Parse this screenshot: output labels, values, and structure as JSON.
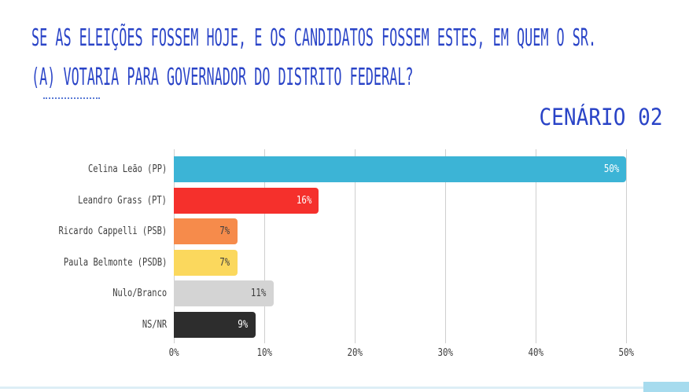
{
  "page": {
    "question_line1": "SE AS ELEIÇÕES FOSSEM HOJE, E OS CANDIDATOS FOSSEM ESTES, EM QUEM O SR.",
    "question_line2": "(A) VOTARIA PARA GOVERNADOR DO DISTRITO FEDERAL?",
    "scenario_label": "CENÁRIO 02",
    "accent_blue": "#2A44C7",
    "footer_strip_color": "#DDEEF6",
    "footer_accent_color": "#A6DBEE"
  },
  "chart_data": {
    "type": "bar",
    "orientation": "horizontal",
    "title": "CENÁRIO 02",
    "categories": [
      "Celina Leão (PP)",
      "Leandro Grass (PT)",
      "Ricardo Cappelli (PSB)",
      "Paula Belmonte (PSDB)",
      "Nulo/Branco",
      "NS/NR"
    ],
    "values": [
      50,
      16,
      7,
      7,
      11,
      9
    ],
    "value_labels": [
      "50%",
      "16%",
      "7%",
      "7%",
      "11%",
      "9%"
    ],
    "bar_colors": [
      "#3CB4D6",
      "#F5302C",
      "#F68B4B",
      "#FBD85D",
      "#D4D4D4",
      "#2D2D2D"
    ],
    "value_label_colors": [
      "#FFFFFF",
      "#FFFFFF",
      "#3F3F3F",
      "#3F3F3F",
      "#3F3F3F",
      "#FFFFFF"
    ],
    "x_ticks": [
      "0%",
      "10%",
      "20%",
      "30%",
      "40%",
      "50%"
    ],
    "xlim": [
      0,
      50
    ],
    "grid": true,
    "grid_color": "#CFCFCF",
    "text_color": "#3F3F3F"
  }
}
